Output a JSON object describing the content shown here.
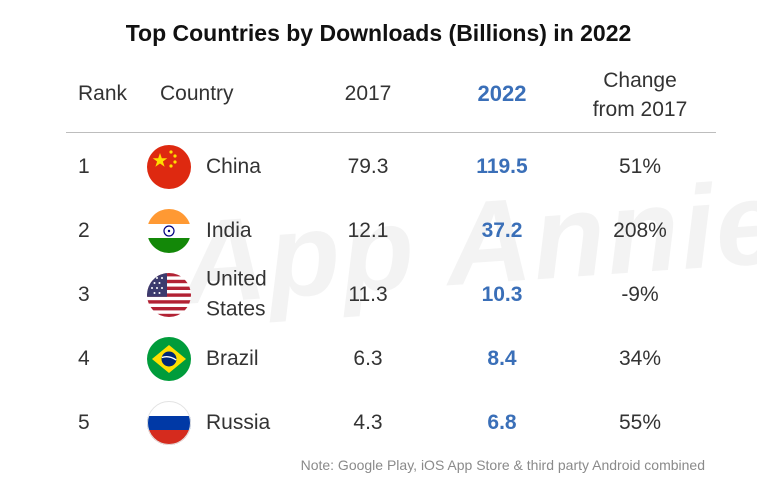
{
  "title": "Top Countries by Downloads (Billions) in 2022",
  "watermark": "App Annie",
  "headers": {
    "rank": "Rank",
    "country": "Country",
    "y2017": "2017",
    "y2022": "2022",
    "change_line1": "Change",
    "change_line2": "from 2017"
  },
  "colors": {
    "accent": "#3a6fb8",
    "text": "#333333",
    "note": "#8a8a8a"
  },
  "chart_data": {
    "type": "table",
    "title": "Top Countries by Downloads (Billions) in 2022",
    "columns": [
      "Rank",
      "Country",
      "2017",
      "2022",
      "Change from 2017"
    ],
    "rows": [
      {
        "rank": "1",
        "country": "China",
        "flag": "china-flag-icon",
        "v2017": "79.3",
        "v2022": "119.5",
        "change": "51%"
      },
      {
        "rank": "2",
        "country": "India",
        "flag": "india-flag-icon",
        "v2017": "12.1",
        "v2022": "37.2",
        "change": "208%"
      },
      {
        "rank": "3",
        "country": "United States",
        "country_line1": "United",
        "country_line2": "States",
        "flag": "united-states-flag-icon",
        "v2017": "11.3",
        "v2022": "10.3",
        "change": "-9%"
      },
      {
        "rank": "4",
        "country": "Brazil",
        "flag": "brazil-flag-icon",
        "v2017": "6.3",
        "v2022": "8.4",
        "change": "34%"
      },
      {
        "rank": "5",
        "country": "Russia",
        "flag": "russia-flag-icon",
        "v2017": "4.3",
        "v2022": "6.8",
        "change": "55%"
      }
    ]
  },
  "note": "Note: Google Play, iOS App Store & third party Android combined"
}
